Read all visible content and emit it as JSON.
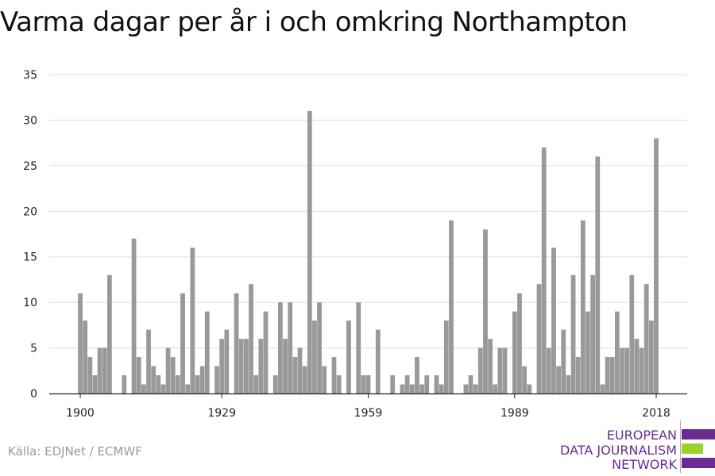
{
  "title": "Varma dagar per år i och omkring Northampton",
  "source": "Källa: EDJNet / ECMWF",
  "logo": {
    "line1": "EUROPEAN",
    "line2": "DATA JOURNALISM",
    "line3": "NETWORK",
    "color_purple": "#6a2c91",
    "color_green": "#9bd32a"
  },
  "chart_data": {
    "type": "bar",
    "title": "Varma dagar per år i och omkring Northampton",
    "xlabel": "",
    "ylabel": "",
    "x_start": 1900,
    "x_end": 2018,
    "x_ticks": [
      1900,
      1929,
      1959,
      1989,
      2018
    ],
    "y_ticks": [
      0,
      5,
      10,
      15,
      20,
      25,
      30,
      35
    ],
    "ylim": [
      0,
      35
    ],
    "grid": true,
    "bar_color": "#999999",
    "values": [
      11,
      8,
      4,
      2,
      5,
      5,
      13,
      0,
      0,
      2,
      0,
      17,
      4,
      1,
      7,
      3,
      2,
      1,
      5,
      4,
      2,
      11,
      1,
      16,
      2,
      3,
      9,
      0,
      3,
      6,
      7,
      0,
      11,
      6,
      6,
      12,
      2,
      6,
      9,
      0,
      2,
      10,
      6,
      10,
      4,
      5,
      3,
      31,
      8,
      10,
      3,
      0,
      4,
      2,
      0,
      8,
      0,
      10,
      2,
      2,
      0,
      7,
      0,
      0,
      2,
      0,
      1,
      2,
      1,
      4,
      1,
      2,
      0,
      2,
      1,
      8,
      19,
      0,
      0,
      1,
      2,
      1,
      5,
      18,
      6,
      1,
      5,
      5,
      0,
      9,
      11,
      3,
      1,
      0,
      12,
      27,
      5,
      16,
      3,
      7,
      2,
      13,
      4,
      19,
      9,
      13,
      26,
      1,
      4,
      4,
      9,
      5,
      5,
      13,
      6,
      5,
      12,
      8,
      28
    ]
  }
}
